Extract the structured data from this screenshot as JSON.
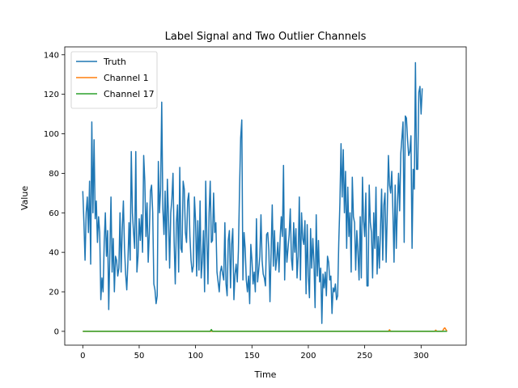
{
  "chart_data": {
    "type": "line",
    "title": "Label Signal and Two Outlier Channels",
    "xlabel": "Time",
    "ylabel": "Value",
    "xlim": [
      -16,
      340
    ],
    "ylim": [
      -7,
      144
    ],
    "xticks": [
      0,
      50,
      100,
      150,
      200,
      250,
      300
    ],
    "yticks": [
      0,
      20,
      40,
      60,
      80,
      100,
      120,
      140
    ],
    "grid": false,
    "legend": "top-left",
    "series": [
      {
        "name": "Truth",
        "color": "#1f77b4",
        "values": [
          71,
          55,
          36,
          60,
          68,
          50,
          76,
          34,
          106,
          60,
          97,
          57,
          66,
          45,
          58,
          50,
          16,
          27,
          20,
          45,
          60,
          38,
          51,
          11,
          40,
          68,
          30,
          47,
          20,
          38,
          36,
          28,
          32,
          60,
          30,
          52,
          66,
          42,
          29,
          21,
          35,
          55,
          36,
          91,
          60,
          50,
          42,
          91,
          30,
          38,
          57,
          46,
          59,
          40,
          89,
          76,
          48,
          65,
          35,
          50,
          71,
          74,
          60,
          24,
          21,
          14,
          18,
          86,
          60,
          72,
          116,
          62,
          49,
          71,
          36,
          77,
          58,
          32,
          60,
          67,
          80,
          45,
          24,
          55,
          64,
          30,
          83,
          42,
          40,
          76,
          72,
          50,
          45,
          66,
          70,
          48,
          36,
          30,
          33,
          68,
          56,
          28,
          56,
          31,
          66,
          27,
          36,
          51,
          20,
          76,
          48,
          24,
          60,
          76,
          45,
          46,
          70,
          50,
          55,
          30,
          25,
          20,
          30,
          33,
          29,
          26,
          55,
          24,
          18,
          46,
          51,
          22,
          44,
          52,
          16,
          29,
          34,
          25,
          41,
          72,
          98,
          107,
          26,
          50,
          42,
          26,
          20,
          28,
          14,
          44,
          36,
          24,
          30,
          20,
          57,
          25,
          31,
          38,
          59,
          36,
          29,
          27,
          23,
          49,
          50,
          41,
          15,
          40,
          64,
          33,
          51,
          31,
          37,
          45,
          30,
          47,
          58,
          48,
          84,
          26,
          52,
          35,
          42,
          49,
          62,
          37,
          31,
          55,
          40,
          52,
          27,
          38,
          68,
          26,
          60,
          47,
          44,
          56,
          19,
          54,
          28,
          17,
          52,
          32,
          47,
          35,
          12,
          59,
          28,
          46,
          25,
          32,
          4,
          29,
          22,
          30,
          18,
          38,
          35,
          26,
          28,
          9,
          22,
          20,
          24,
          16,
          18,
          45,
          65,
          95,
          68,
          92,
          60,
          81,
          42,
          73,
          48,
          60,
          30,
          78,
          58,
          55,
          31,
          51,
          40,
          26,
          58,
          27,
          78,
          56,
          48,
          70,
          23,
          23,
          74,
          55,
          50,
          27,
          60,
          42,
          73,
          29,
          48,
          32,
          52,
          72,
          36,
          64,
          70,
          35,
          60,
          89,
          74,
          70,
          81,
          61,
          35,
          74,
          42,
          64,
          80,
          61,
          90,
          98,
          106,
          45,
          109,
          108,
          97,
          89,
          91,
          99,
          42,
          82,
          72,
          136,
          82,
          82,
          121,
          124,
          110,
          123
        ],
        "x_start": 0,
        "x_step": 1
      },
      {
        "name": "Channel 1",
        "color": "#ff7f0e",
        "points": [
          [
            0,
            0
          ],
          [
            271,
            0
          ],
          [
            272,
            0.8
          ],
          [
            273,
            0
          ],
          [
            312,
            0
          ],
          [
            313,
            0.6
          ],
          [
            314,
            0
          ],
          [
            319,
            0
          ],
          [
            320,
            1.2
          ],
          [
            321,
            1.8
          ],
          [
            322,
            0.9
          ],
          [
            323,
            0
          ]
        ]
      },
      {
        "name": "Channel 17",
        "color": "#2ca02c",
        "points": [
          [
            0,
            0
          ],
          [
            113,
            0
          ],
          [
            114,
            0.9
          ],
          [
            115,
            0
          ],
          [
            323,
            0
          ]
        ]
      }
    ]
  }
}
